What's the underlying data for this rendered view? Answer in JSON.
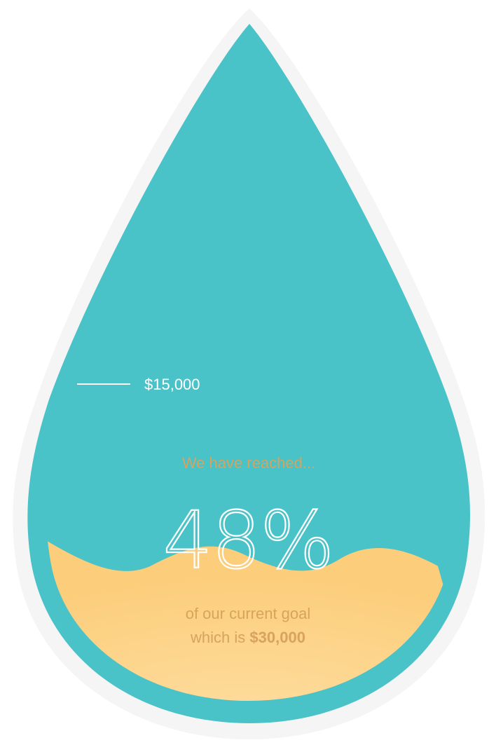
{
  "chart_data": {
    "type": "progress-gauge",
    "shape": "water-drop",
    "progress_fraction": 0.48,
    "percent_label": "48%",
    "intro_label": "We have reached...",
    "goal_line": "of our current goal",
    "goal_prefix": "which is ",
    "goal_amount": "$30,000",
    "marker_label": "$15,000",
    "marker_fraction": 0.5
  },
  "colors": {
    "outer_halo": "#f5f5f6",
    "drop_fill": "#49c2c8",
    "liquid_top": "#fccd7a",
    "liquid_bottom": "#fedfa4",
    "text_tan": "#d7a35e",
    "text_white": "#ffffff"
  }
}
